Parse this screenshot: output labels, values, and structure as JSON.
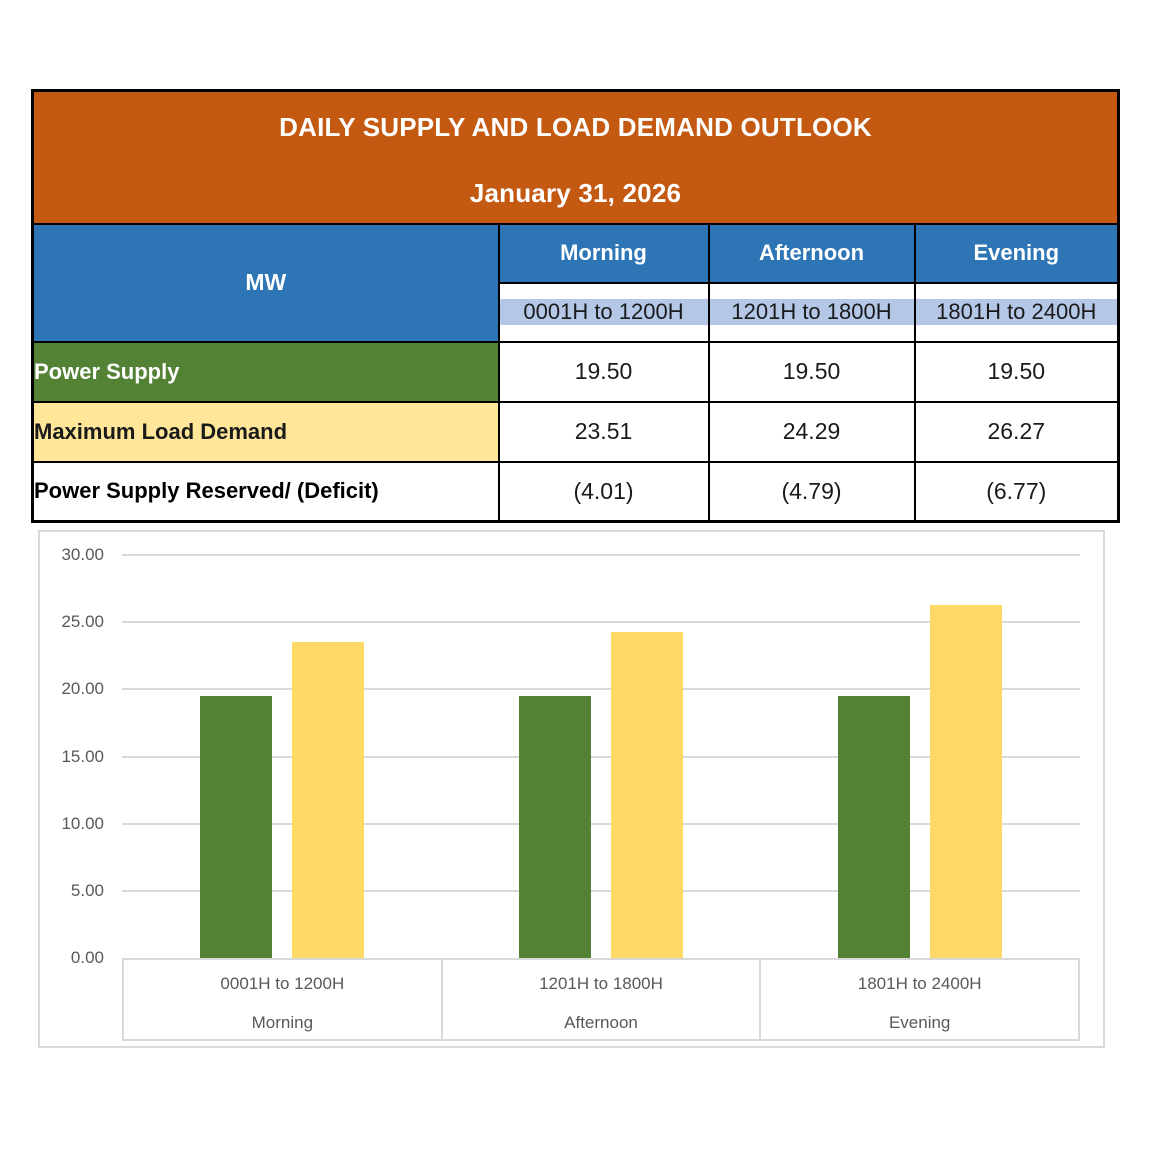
{
  "colors": {
    "orange": "#C45911",
    "blue": "#2E75B6",
    "lightblue": "#B4C7E7",
    "green": "#548235",
    "yellow": "#FFE699"
  },
  "table": {
    "title": "DAILY SUPPLY AND LOAD DEMAND OUTLOOK",
    "date": "January 31, 2026",
    "unit_header": "MW",
    "periods": [
      {
        "name": "Morning",
        "hours": "0001H to 1200H"
      },
      {
        "name": "Afternoon",
        "hours": "1201H to 1800H"
      },
      {
        "name": "Evening",
        "hours": "1801H to 2400H"
      }
    ],
    "rows": [
      {
        "label": "Power Supply",
        "values": [
          "19.50",
          "19.50",
          "19.50"
        ]
      },
      {
        "label": "Maximum Load Demand",
        "values": [
          "23.51",
          "24.29",
          "26.27"
        ]
      },
      {
        "label": "Power Supply Reserved/ (Deficit)",
        "values": [
          "(4.01)",
          "(4.79)",
          "(6.77)"
        ]
      }
    ]
  },
  "chart_data": {
    "type": "bar",
    "title": "",
    "categories": [
      "0001H to 1200H",
      "1201H to 1800H",
      "1801H to 2400H"
    ],
    "category_groups": [
      "Morning",
      "Afternoon",
      "Evening"
    ],
    "series": [
      {
        "name": "Power Supply",
        "color": "#548235",
        "values": [
          19.5,
          19.5,
          19.5
        ]
      },
      {
        "name": "Maximum Load Demand",
        "color": "#FFD966",
        "values": [
          23.51,
          24.29,
          26.27
        ]
      }
    ],
    "ylim": [
      0,
      30
    ],
    "yticks": [
      {
        "value": 0,
        "label": "0.00"
      },
      {
        "value": 5,
        "label": "5.00"
      },
      {
        "value": 10,
        "label": "10.00"
      },
      {
        "value": 15,
        "label": "15.00"
      },
      {
        "value": 20,
        "label": "20.00"
      },
      {
        "value": 25,
        "label": "25.00"
      },
      {
        "value": 30,
        "label": "30.00"
      }
    ],
    "grid": true,
    "legend": "none",
    "gridline_color": "#D9D9D9",
    "axis_text_color": "#595959"
  }
}
